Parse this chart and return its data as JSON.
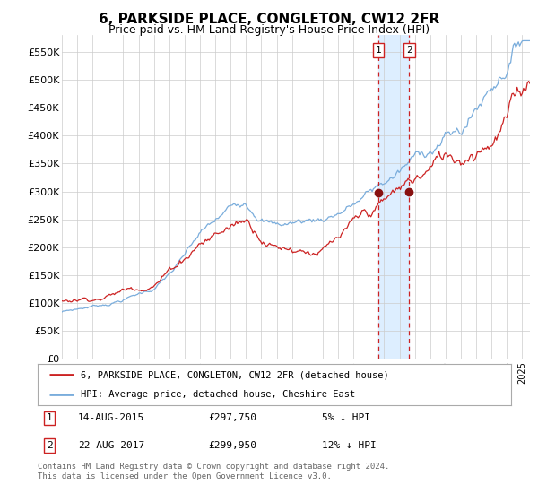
{
  "title": "6, PARKSIDE PLACE, CONGLETON, CW12 2FR",
  "subtitle": "Price paid vs. HM Land Registry's House Price Index (HPI)",
  "ylabel_ticks": [
    "£0",
    "£50K",
    "£100K",
    "£150K",
    "£200K",
    "£250K",
    "£300K",
    "£350K",
    "£400K",
    "£450K",
    "£500K",
    "£550K"
  ],
  "ytick_values": [
    0,
    50000,
    100000,
    150000,
    200000,
    250000,
    300000,
    350000,
    400000,
    450000,
    500000,
    550000
  ],
  "ylim": [
    0,
    580000
  ],
  "xlim_start": 1995.0,
  "xlim_end": 2025.5,
  "hpi_color": "#7aaddc",
  "price_color": "#cc2222",
  "marker_color": "#881111",
  "vline_color": "#cc2222",
  "shade_color": "#ddeeff",
  "point1_x": 2015.619,
  "point1_y": 297750,
  "point2_x": 2017.638,
  "point2_y": 299950,
  "legend_label1": "6, PARKSIDE PLACE, CONGLETON, CW12 2FR (detached house)",
  "legend_label2": "HPI: Average price, detached house, Cheshire East",
  "table_row1_num": "1",
  "table_row1_date": "14-AUG-2015",
  "table_row1_price": "£297,750",
  "table_row1_info": "5% ↓ HPI",
  "table_row2_num": "2",
  "table_row2_date": "22-AUG-2017",
  "table_row2_price": "£299,950",
  "table_row2_info": "12% ↓ HPI",
  "footnote": "Contains HM Land Registry data © Crown copyright and database right 2024.\nThis data is licensed under the Open Government Licence v3.0.",
  "background_color": "#ffffff",
  "grid_color": "#cccccc"
}
